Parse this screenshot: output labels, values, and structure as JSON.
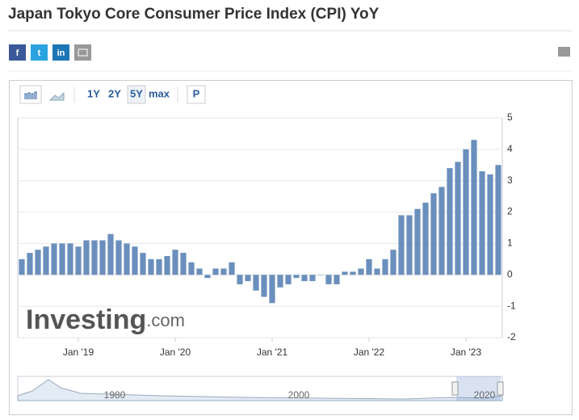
{
  "page_title": "Japan Tokyo Core Consumer Price Index (CPI) YoY",
  "share_icons": [
    "f",
    "t",
    "in"
  ],
  "toolbar": [
    "1Y",
    "2Y",
    "5Y",
    "max",
    "P"
  ],
  "watermark": {
    "brand": "Investing",
    "suffix": ".com"
  },
  "navigator_labels": [
    "1980",
    "2000",
    "2020"
  ],
  "chart_data": {
    "type": "bar",
    "color": "#6a8fbd",
    "categories": [
      null,
      null,
      null,
      null,
      null,
      null,
      null,
      "Jan '19",
      null,
      null,
      null,
      null,
      null,
      null,
      null,
      null,
      null,
      null,
      null,
      "Jan '20",
      null,
      null,
      null,
      null,
      null,
      null,
      null,
      null,
      null,
      null,
      null,
      "Jan '21",
      null,
      null,
      null,
      null,
      null,
      null,
      null,
      null,
      null,
      null,
      null,
      "Jan '22",
      null,
      null,
      null,
      null,
      null,
      null,
      null,
      null,
      null,
      null,
      null,
      "Jan '23",
      null,
      null,
      null,
      null
    ],
    "values": [
      0.5,
      0.7,
      0.8,
      0.9,
      1.0,
      1.0,
      1.0,
      0.9,
      1.1,
      1.1,
      1.1,
      1.3,
      1.1,
      1.0,
      0.9,
      0.7,
      0.5,
      0.5,
      0.6,
      0.8,
      0.7,
      0.4,
      0.2,
      -0.1,
      0.2,
      0.2,
      0.4,
      -0.3,
      -0.2,
      -0.5,
      -0.7,
      -0.9,
      -0.4,
      -0.3,
      -0.1,
      -0.2,
      -0.2,
      0.0,
      -0.3,
      -0.3,
      0.1,
      0.1,
      0.2,
      0.5,
      0.2,
      0.5,
      0.8,
      1.9,
      1.9,
      2.1,
      2.3,
      2.6,
      2.8,
      3.4,
      3.6,
      4.0,
      4.3,
      3.3,
      3.2,
      3.5
    ],
    "ylim": [
      -2,
      5
    ],
    "yticks": [
      -2,
      -1,
      0,
      1,
      2,
      3,
      4,
      5
    ],
    "grid": true
  }
}
